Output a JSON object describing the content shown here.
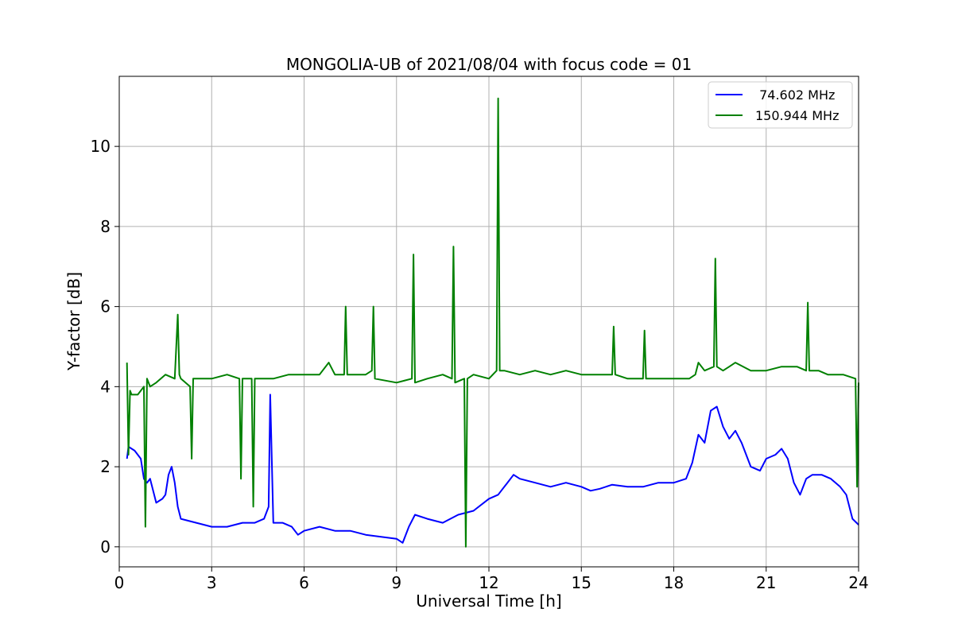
{
  "chart_data": {
    "type": "line",
    "title": "MONGOLIA-UB of 2021/08/04 with focus code = 01",
    "xlabel": "Universal Time [h]",
    "ylabel": "Y-factor [dB]",
    "xlim": [
      0,
      24
    ],
    "ylim": [
      -0.5,
      11.75
    ],
    "xticks": [
      0,
      3,
      6,
      9,
      12,
      15,
      18,
      21,
      24
    ],
    "yticks": [
      0,
      2,
      4,
      6,
      8,
      10
    ],
    "grid": true,
    "legend_position": "top-right",
    "series": [
      {
        "name": " 74.602 MHz",
        "color": "#0000ff",
        "x": [
          0.25,
          0.3,
          0.5,
          0.7,
          0.8,
          0.9,
          1.0,
          1.2,
          1.4,
          1.5,
          1.6,
          1.7,
          1.8,
          1.9,
          2.0,
          2.5,
          3.0,
          3.5,
          4.0,
          4.4,
          4.7,
          4.85,
          4.9,
          5.0,
          5.3,
          5.6,
          5.8,
          6.0,
          6.5,
          7.0,
          7.5,
          8.0,
          8.5,
          9.0,
          9.2,
          9.4,
          9.6,
          10.0,
          10.5,
          11.0,
          11.5,
          12.0,
          12.3,
          12.6,
          12.8,
          13.0,
          13.5,
          14.0,
          14.5,
          15.0,
          15.3,
          15.6,
          16.0,
          16.5,
          17.0,
          17.5,
          18.0,
          18.4,
          18.6,
          18.8,
          19.0,
          19.2,
          19.4,
          19.6,
          19.8,
          20.0,
          20.2,
          20.5,
          20.8,
          21.0,
          21.3,
          21.5,
          21.7,
          21.9,
          22.1,
          22.3,
          22.5,
          22.8,
          23.1,
          23.4,
          23.6,
          23.8,
          24.0
        ],
        "values": [
          2.2,
          2.5,
          2.4,
          2.2,
          1.7,
          1.6,
          1.7,
          1.1,
          1.2,
          1.3,
          1.8,
          2.0,
          1.6,
          1.0,
          0.7,
          0.6,
          0.5,
          0.5,
          0.6,
          0.6,
          0.7,
          1.0,
          3.8,
          0.6,
          0.6,
          0.5,
          0.3,
          0.4,
          0.5,
          0.4,
          0.4,
          0.3,
          0.25,
          0.2,
          0.1,
          0.5,
          0.8,
          0.7,
          0.6,
          0.8,
          0.9,
          1.2,
          1.3,
          1.6,
          1.8,
          1.7,
          1.6,
          1.5,
          1.6,
          1.5,
          1.4,
          1.45,
          1.55,
          1.5,
          1.5,
          1.6,
          1.6,
          1.7,
          2.1,
          2.8,
          2.6,
          3.4,
          3.5,
          3.0,
          2.7,
          2.9,
          2.6,
          2.0,
          1.9,
          2.2,
          2.3,
          2.45,
          2.2,
          1.6,
          1.3,
          1.7,
          1.8,
          1.8,
          1.7,
          1.5,
          1.3,
          0.7,
          0.55
        ]
      },
      {
        "name": "150.944 MHz",
        "color": "#008000",
        "x": [
          0.25,
          0.3,
          0.35,
          0.4,
          0.6,
          0.8,
          0.85,
          0.9,
          1.0,
          1.2,
          1.5,
          1.8,
          1.9,
          1.95,
          2.0,
          2.3,
          2.35,
          2.4,
          3.0,
          3.5,
          3.9,
          3.95,
          4.0,
          4.3,
          4.35,
          4.4,
          4.8,
          5.0,
          5.5,
          6.0,
          6.5,
          6.8,
          7.0,
          7.3,
          7.35,
          7.4,
          8.0,
          8.2,
          8.25,
          8.3,
          9.0,
          9.5,
          9.55,
          9.6,
          10.0,
          10.5,
          10.8,
          10.85,
          10.9,
          11.2,
          11.25,
          11.3,
          11.5,
          12.0,
          12.25,
          12.3,
          12.35,
          12.5,
          13.0,
          13.5,
          14.0,
          14.5,
          15.0,
          15.5,
          16.0,
          16.05,
          16.1,
          16.5,
          17.0,
          17.05,
          17.1,
          17.5,
          18.0,
          18.5,
          18.7,
          18.8,
          19.0,
          19.3,
          19.35,
          19.4,
          19.6,
          19.8,
          20.0,
          20.5,
          21.0,
          21.5,
          22.0,
          22.3,
          22.35,
          22.4,
          22.7,
          23.0,
          23.5,
          23.9,
          23.95,
          24.0
        ],
        "values": [
          4.6,
          2.3,
          3.9,
          3.8,
          3.8,
          4.0,
          0.5,
          4.2,
          4.0,
          4.1,
          4.3,
          4.2,
          5.8,
          4.3,
          4.2,
          4.0,
          2.2,
          4.2,
          4.2,
          4.3,
          4.2,
          1.7,
          4.2,
          4.2,
          1.0,
          4.2,
          4.2,
          4.2,
          4.3,
          4.3,
          4.3,
          4.6,
          4.3,
          4.3,
          6.0,
          4.3,
          4.3,
          4.4,
          6.0,
          4.2,
          4.1,
          4.2,
          7.3,
          4.1,
          4.2,
          4.3,
          4.2,
          7.5,
          4.1,
          4.2,
          0.0,
          4.2,
          4.3,
          4.2,
          4.4,
          11.2,
          4.4,
          4.4,
          4.3,
          4.4,
          4.3,
          4.4,
          4.3,
          4.3,
          4.3,
          5.5,
          4.3,
          4.2,
          4.2,
          5.4,
          4.2,
          4.2,
          4.2,
          4.2,
          4.3,
          4.6,
          4.4,
          4.5,
          7.2,
          4.5,
          4.4,
          4.5,
          4.6,
          4.4,
          4.4,
          4.5,
          4.5,
          4.4,
          6.1,
          4.4,
          4.4,
          4.3,
          4.3,
          4.2,
          1.5,
          4.1
        ]
      }
    ]
  }
}
